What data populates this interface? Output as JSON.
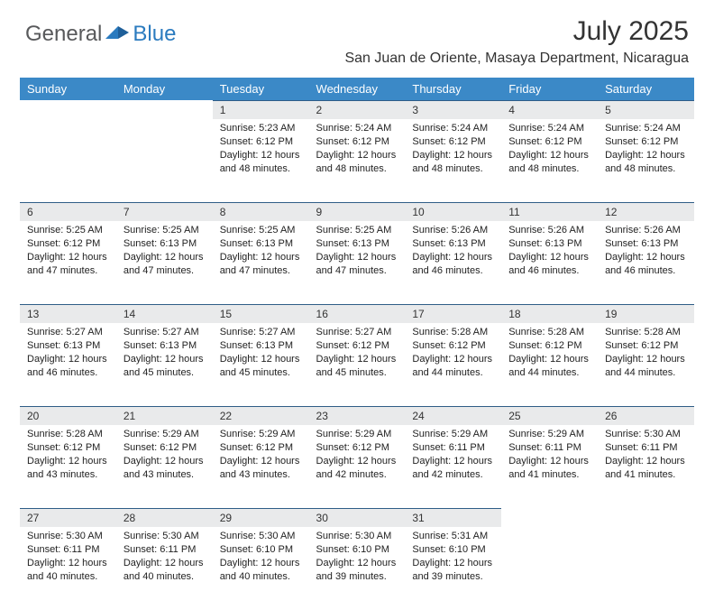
{
  "brand": {
    "part1": "General",
    "part2": "Blue"
  },
  "title": "July 2025",
  "location": "San Juan de Oriente, Masaya Department, Nicaragua",
  "colors": {
    "header_bg": "#3b89c7",
    "header_text": "#ffffff",
    "daynum_bg": "#e9eaeb",
    "daynum_border": "#2f5d87",
    "body_text": "#222222",
    "title_text": "#333333",
    "logo_gray": "#58595b",
    "logo_blue": "#2b7bbf"
  },
  "day_headers": [
    "Sunday",
    "Monday",
    "Tuesday",
    "Wednesday",
    "Thursday",
    "Friday",
    "Saturday"
  ],
  "weeks": [
    [
      null,
      null,
      {
        "n": "1",
        "sr": "5:23 AM",
        "ss": "6:12 PM",
        "dl": "12 hours and 48 minutes."
      },
      {
        "n": "2",
        "sr": "5:24 AM",
        "ss": "6:12 PM",
        "dl": "12 hours and 48 minutes."
      },
      {
        "n": "3",
        "sr": "5:24 AM",
        "ss": "6:12 PM",
        "dl": "12 hours and 48 minutes."
      },
      {
        "n": "4",
        "sr": "5:24 AM",
        "ss": "6:12 PM",
        "dl": "12 hours and 48 minutes."
      },
      {
        "n": "5",
        "sr": "5:24 AM",
        "ss": "6:12 PM",
        "dl": "12 hours and 48 minutes."
      }
    ],
    [
      {
        "n": "6",
        "sr": "5:25 AM",
        "ss": "6:12 PM",
        "dl": "12 hours and 47 minutes."
      },
      {
        "n": "7",
        "sr": "5:25 AM",
        "ss": "6:13 PM",
        "dl": "12 hours and 47 minutes."
      },
      {
        "n": "8",
        "sr": "5:25 AM",
        "ss": "6:13 PM",
        "dl": "12 hours and 47 minutes."
      },
      {
        "n": "9",
        "sr": "5:25 AM",
        "ss": "6:13 PM",
        "dl": "12 hours and 47 minutes."
      },
      {
        "n": "10",
        "sr": "5:26 AM",
        "ss": "6:13 PM",
        "dl": "12 hours and 46 minutes."
      },
      {
        "n": "11",
        "sr": "5:26 AM",
        "ss": "6:13 PM",
        "dl": "12 hours and 46 minutes."
      },
      {
        "n": "12",
        "sr": "5:26 AM",
        "ss": "6:13 PM",
        "dl": "12 hours and 46 minutes."
      }
    ],
    [
      {
        "n": "13",
        "sr": "5:27 AM",
        "ss": "6:13 PM",
        "dl": "12 hours and 46 minutes."
      },
      {
        "n": "14",
        "sr": "5:27 AM",
        "ss": "6:13 PM",
        "dl": "12 hours and 45 minutes."
      },
      {
        "n": "15",
        "sr": "5:27 AM",
        "ss": "6:13 PM",
        "dl": "12 hours and 45 minutes."
      },
      {
        "n": "16",
        "sr": "5:27 AM",
        "ss": "6:12 PM",
        "dl": "12 hours and 45 minutes."
      },
      {
        "n": "17",
        "sr": "5:28 AM",
        "ss": "6:12 PM",
        "dl": "12 hours and 44 minutes."
      },
      {
        "n": "18",
        "sr": "5:28 AM",
        "ss": "6:12 PM",
        "dl": "12 hours and 44 minutes."
      },
      {
        "n": "19",
        "sr": "5:28 AM",
        "ss": "6:12 PM",
        "dl": "12 hours and 44 minutes."
      }
    ],
    [
      {
        "n": "20",
        "sr": "5:28 AM",
        "ss": "6:12 PM",
        "dl": "12 hours and 43 minutes."
      },
      {
        "n": "21",
        "sr": "5:29 AM",
        "ss": "6:12 PM",
        "dl": "12 hours and 43 minutes."
      },
      {
        "n": "22",
        "sr": "5:29 AM",
        "ss": "6:12 PM",
        "dl": "12 hours and 43 minutes."
      },
      {
        "n": "23",
        "sr": "5:29 AM",
        "ss": "6:12 PM",
        "dl": "12 hours and 42 minutes."
      },
      {
        "n": "24",
        "sr": "5:29 AM",
        "ss": "6:11 PM",
        "dl": "12 hours and 42 minutes."
      },
      {
        "n": "25",
        "sr": "5:29 AM",
        "ss": "6:11 PM",
        "dl": "12 hours and 41 minutes."
      },
      {
        "n": "26",
        "sr": "5:30 AM",
        "ss": "6:11 PM",
        "dl": "12 hours and 41 minutes."
      }
    ],
    [
      {
        "n": "27",
        "sr": "5:30 AM",
        "ss": "6:11 PM",
        "dl": "12 hours and 40 minutes."
      },
      {
        "n": "28",
        "sr": "5:30 AM",
        "ss": "6:11 PM",
        "dl": "12 hours and 40 minutes."
      },
      {
        "n": "29",
        "sr": "5:30 AM",
        "ss": "6:10 PM",
        "dl": "12 hours and 40 minutes."
      },
      {
        "n": "30",
        "sr": "5:30 AM",
        "ss": "6:10 PM",
        "dl": "12 hours and 39 minutes."
      },
      {
        "n": "31",
        "sr": "5:31 AM",
        "ss": "6:10 PM",
        "dl": "12 hours and 39 minutes."
      },
      null,
      null
    ]
  ],
  "labels": {
    "sunrise": "Sunrise:",
    "sunset": "Sunset:",
    "daylight": "Daylight:"
  }
}
